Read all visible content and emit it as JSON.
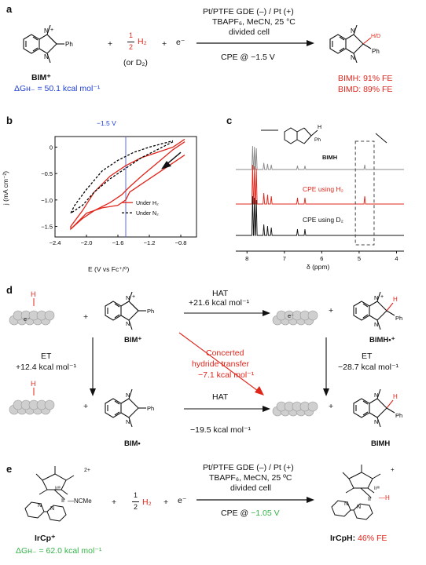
{
  "a": {
    "letter": "a",
    "reactant": "BIM⁺",
    "plus1": "+",
    "half_h2": "H₂",
    "frac_top": "1",
    "frac_bottom": "2",
    "or_d2": "(or D₂)",
    "plus2": "+",
    "electron": "e⁻",
    "dG": "ΔGʜ₋ = 50.1 kcal mol⁻¹",
    "cond1": "Pt/PTFE GDE (–) / Pt (+)",
    "cond2": "TBAPF₆, MeCN, 25 °C",
    "cond3": "divided cell",
    "cpe": "CPE @ −1.5 V",
    "product_label": "H/D",
    "ph": "Ph",
    "ph2": "Ph",
    "bimh_fe": "BIMH: 91% FE",
    "bimd_fe": "BIMD: 89% FE"
  },
  "b": {
    "letter": "b",
    "vline_label": "−1.5 V",
    "ylabel": "j (mA cm⁻²)",
    "xlabel": "E (V vs Fc⁺/⁰)",
    "legend": [
      "Under H₂",
      "Under N₂"
    ],
    "xticks": [
      "−2.4",
      "−2.0",
      "−1.6",
      "−1.2",
      "−0.8"
    ],
    "yticks": [
      "0",
      "−0.5",
      "−1.0",
      "−1.5"
    ]
  },
  "c": {
    "letter": "c",
    "label_bimh": "BIMH",
    "label_h2": "CPE using H₂",
    "label_d2": "CPE using D₂",
    "xlabel": "δ (ppm)",
    "xticks": [
      "8",
      "7",
      "6",
      "5",
      "4"
    ],
    "h": "H",
    "ph": "Ph"
  },
  "d": {
    "letter": "d",
    "hat_top": "HAT",
    "hat_top_e": "+21.6 kcal mol⁻¹",
    "et_left": "ET",
    "et_left_e": "+12.4 kcal mol⁻¹",
    "concerted1": "Concerted",
    "concerted2": "hydride transfer",
    "concerted3": "−7.1 kcal mol⁻¹",
    "et_right": "ET",
    "et_right_e": "−28.7 kcal mol⁻¹",
    "hat_bottom": "HAT",
    "hat_bottom_e": "−19.5 kcal mol⁻¹",
    "bim_plus": "BIM⁺",
    "bimh_radcat": "BIMH•⁺",
    "bim_rad": "BIM•",
    "bimh": "BIMH",
    "e_minus": "e⁻",
    "h": "H",
    "ph": "Ph",
    "plus": "+"
  },
  "e": {
    "letter": "e",
    "reactant": "IrCp⁺",
    "charge1": "2+",
    "ncme": "—NCMe",
    "ir3": "Irᴵᴵᴵ",
    "frac_top": "1",
    "frac_bottom": "2",
    "h2": "H₂",
    "plus": "+",
    "electron": "e⁻",
    "dG": "ΔGʜ₋ = 62.0 kcal mol⁻¹",
    "cond1": "Pt/PTFE GDE (–) / Pt (+)",
    "cond2": "TBAPF₆, MeCN, 25 ºC",
    "cond3": "divided cell",
    "cpe_prefix": "CPE @ ",
    "cpe_value": "−1.05 V",
    "product": "IrCpH:",
    "fe": "46% FE",
    "charge2": "+",
    "ir_h": "—H"
  },
  "colors": {
    "red": "#e0251b",
    "blue": "#1f3fd6",
    "green": "#36b34a",
    "gray": "#8a8a8a"
  },
  "chart_data": {
    "type": "line",
    "title": "",
    "xlabel": "E (V vs Fc⁺/⁰)",
    "ylabel": "j (mA cm⁻²)",
    "xlim": [
      -2.4,
      -0.6
    ],
    "ylim": [
      -1.7,
      0.2
    ],
    "vline": -1.5,
    "legend_position": "bottom-right",
    "series": [
      {
        "name": "Under H₂",
        "color": "#e0251b",
        "style": "solid",
        "x": [
          -0.75,
          -0.9,
          -1.1,
          -1.3,
          -1.45,
          -1.55,
          -1.7,
          -1.9,
          -2.05,
          -2.2,
          -2.2,
          -2.05,
          -1.9,
          -1.7,
          -1.5,
          -1.3,
          -1.1,
          -0.9,
          -0.75
        ],
        "y": [
          0.1,
          -0.05,
          -0.3,
          -0.55,
          -0.75,
          -0.9,
          -1.05,
          -1.2,
          -1.35,
          -1.55,
          -1.5,
          -1.2,
          -0.85,
          -0.55,
          -0.35,
          -0.2,
          -0.1,
          0.0,
          0.15
        ]
      },
      {
        "name": "Under H₂",
        "color": "#e0251b",
        "style": "solid",
        "x": [
          -0.75,
          -0.9,
          -1.1,
          -1.3,
          -1.4,
          -1.45,
          -1.5,
          -1.6,
          -1.8,
          -2.0,
          -2.2
        ],
        "y": [
          -0.15,
          -0.3,
          -0.5,
          -0.7,
          -0.8,
          -0.85,
          -1.0,
          -1.1,
          -1.15,
          -1.25,
          -1.55
        ]
      },
      {
        "name": "Under N₂",
        "color": "#000000",
        "style": "dashed",
        "x": [
          -0.9,
          -1.1,
          -1.3,
          -1.5,
          -1.7,
          -1.9,
          -2.05,
          -2.2,
          -2.15,
          -2.0,
          -1.8,
          -1.6,
          -1.4,
          -1.2,
          -1.0,
          -0.9
        ],
        "y": [
          0.1,
          -0.05,
          -0.2,
          -0.4,
          -0.6,
          -0.85,
          -1.1,
          -1.25,
          -1.1,
          -0.8,
          -0.45,
          -0.25,
          -0.1,
          0.0,
          0.08,
          0.12
        ]
      }
    ]
  }
}
